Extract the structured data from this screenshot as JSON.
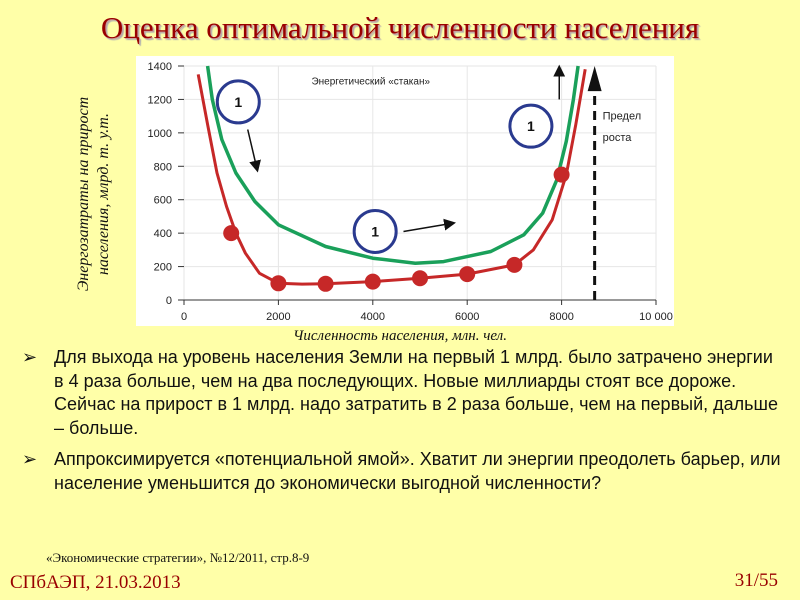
{
  "slide": {
    "title": "Оценка оптимальной численности населения",
    "source": "«Экономические стратегии», №12/2011, стр.8-9",
    "footer_left": "СПбАЭП, 21.03.2013",
    "page_number": "31/55"
  },
  "bullets": [
    {
      "marker": "➢",
      "text": "Для выхода на уровень населения Земли на первый 1 млрд. было затрачено энергии в 4 раза больше, чем на два последующих. Новые миллиарды стоят все дороже. Сейчас на прирост в 1 млрд. надо затратить в 2 раза больше, чем на первый, дальше – больше."
    },
    {
      "marker": "➢",
      "text": "Аппроксимируется «потенциальной ямой». Хватит ли энергии преодолеть барьер, или население уменьшится до экономически выгодной численности?"
    }
  ],
  "colors": {
    "background": "#ffffa8",
    "title": "#990000",
    "red_curve": "#c62828",
    "green_curve": "#1aa05a",
    "circle_outline": "#2a3a8f"
  },
  "chart_data": {
    "type": "line",
    "xlabel": "Численность населения, млн. чел.",
    "ylabel": "Энергозатраты на прирост населения, млрд. т. у.т.",
    "xlim": [
      0,
      10000
    ],
    "ylim": [
      0,
      1400
    ],
    "xticks": [
      "0",
      "2000",
      "4000",
      "6000",
      "8000",
      "10 000"
    ],
    "yticks": [
      "0",
      "200",
      "400",
      "600",
      "800",
      "1000",
      "1200",
      "1400"
    ],
    "grid": true,
    "annotations": {
      "glass_label": "Энергетический «стакан»",
      "limit_label_1": "Предел",
      "limit_label_2": "роста",
      "circle_label": "1"
    },
    "limit_line_x": 8700,
    "series": [
      {
        "role": "energy cost curve",
        "color": "#c62828",
        "line": [
          [
            300,
            1350
          ],
          [
            500,
            1050
          ],
          [
            700,
            760
          ],
          [
            900,
            560
          ],
          [
            1100,
            400
          ],
          [
            1300,
            280
          ],
          [
            1600,
            160
          ],
          [
            2000,
            100
          ],
          [
            2500,
            95
          ],
          [
            3000,
            97
          ],
          [
            4000,
            110
          ],
          [
            5000,
            130
          ],
          [
            6000,
            155
          ],
          [
            7000,
            210
          ],
          [
            7400,
            300
          ],
          [
            7800,
            480
          ],
          [
            8100,
            750
          ],
          [
            8300,
            1050
          ],
          [
            8500,
            1380
          ]
        ],
        "points": [
          [
            1000,
            400
          ],
          [
            2000,
            100
          ],
          [
            3000,
            97
          ],
          [
            4000,
            110
          ],
          [
            5000,
            130
          ],
          [
            6000,
            155
          ],
          [
            7000,
            210
          ],
          [
            8000,
            750
          ]
        ]
      },
      {
        "role": "energy glass curve",
        "color": "#1aa05a",
        "line": [
          [
            500,
            1400
          ],
          [
            600,
            1200
          ],
          [
            800,
            960
          ],
          [
            1100,
            760
          ],
          [
            1500,
            590
          ],
          [
            2000,
            450
          ],
          [
            3000,
            320
          ],
          [
            4000,
            250
          ],
          [
            4900,
            220
          ],
          [
            5500,
            230
          ],
          [
            6500,
            290
          ],
          [
            7200,
            390
          ],
          [
            7600,
            520
          ],
          [
            7900,
            720
          ],
          [
            8100,
            950
          ],
          [
            8250,
            1200
          ],
          [
            8350,
            1400
          ]
        ]
      }
    ]
  }
}
